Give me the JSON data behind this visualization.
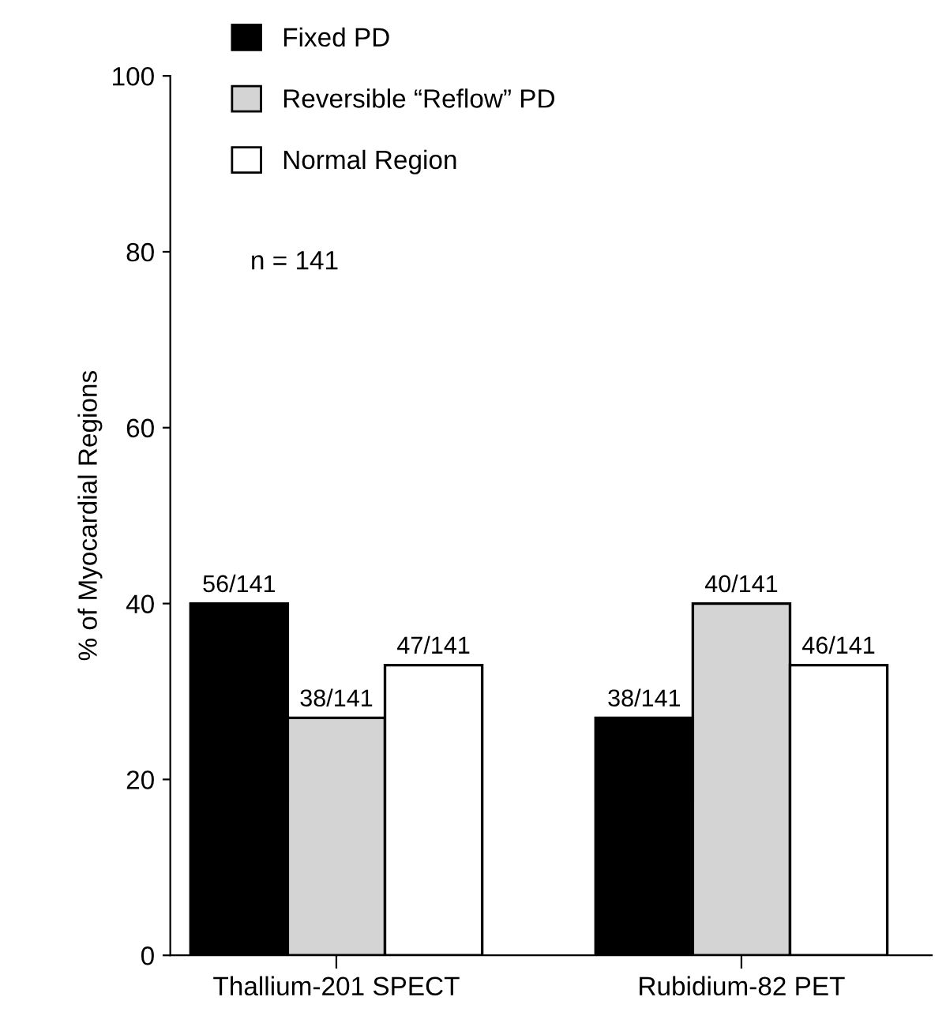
{
  "chart_data": {
    "type": "bar",
    "ylabel": "% of Myocardial Regions",
    "categories": [
      "Thallium-201 SPECT",
      "Rubidium-82 PET"
    ],
    "series": [
      {
        "name": "Fixed PD",
        "color": "#000000",
        "values": [
          40,
          27
        ],
        "value_labels": [
          "56/141",
          "38/141"
        ]
      },
      {
        "name": "Reversible “Reflow” PD",
        "color": "#d4d4d4",
        "values": [
          27,
          40
        ],
        "value_labels": [
          "38/141",
          "40/141"
        ]
      },
      {
        "name": "Normal Region",
        "color": "#ffffff",
        "values": [
          33,
          33
        ],
        "value_labels": [
          "47/141",
          "46/141"
        ]
      }
    ],
    "annotations": [
      "n = 141"
    ],
    "ylim": [
      0,
      100
    ],
    "yticks": [
      0,
      20,
      40,
      60,
      80,
      100
    ],
    "grid": false,
    "legend": "top left"
  }
}
